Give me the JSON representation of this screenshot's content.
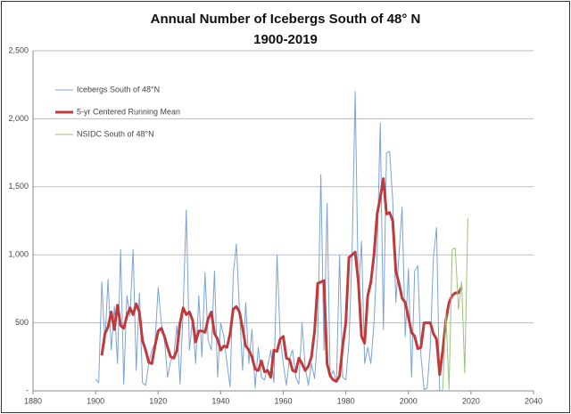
{
  "chart_data": {
    "type": "line",
    "title": "Annual Number of Icebergs South of 48° N",
    "subtitle": "1900-2019",
    "x": [
      1900,
      1901,
      1902,
      1903,
      1904,
      1905,
      1906,
      1907,
      1908,
      1909,
      1910,
      1911,
      1912,
      1913,
      1914,
      1915,
      1916,
      1917,
      1918,
      1919,
      1920,
      1921,
      1922,
      1923,
      1924,
      1925,
      1926,
      1927,
      1928,
      1929,
      1930,
      1931,
      1932,
      1933,
      1934,
      1935,
      1936,
      1937,
      1938,
      1939,
      1940,
      1941,
      1942,
      1943,
      1944,
      1945,
      1946,
      1947,
      1948,
      1949,
      1950,
      1951,
      1952,
      1953,
      1954,
      1955,
      1956,
      1957,
      1958,
      1959,
      1960,
      1961,
      1962,
      1963,
      1964,
      1965,
      1966,
      1967,
      1968,
      1969,
      1970,
      1971,
      1972,
      1973,
      1974,
      1975,
      1976,
      1977,
      1978,
      1979,
      1980,
      1981,
      1982,
      1983,
      1984,
      1985,
      1986,
      1987,
      1988,
      1989,
      1990,
      1991,
      1992,
      1993,
      1994,
      1995,
      1996,
      1997,
      1998,
      1999,
      2000,
      2001,
      2002,
      2003,
      2004,
      2005,
      2006,
      2007,
      2008,
      2009,
      2010,
      2011,
      2012,
      2013,
      2014,
      2015,
      2016,
      2017,
      2018,
      2019
    ],
    "series": [
      {
        "name": "Icebergs South of 48°N",
        "color": "#7ba3d6",
        "width": 1,
        "values": [
          85,
          60,
          800,
          350,
          820,
          300,
          620,
          200,
          1040,
          50,
          700,
          550,
          1040,
          150,
          720,
          60,
          40,
          200,
          300,
          350,
          760,
          500,
          380,
          100,
          220,
          260,
          480,
          50,
          600,
          1330,
          300,
          520,
          200,
          700,
          250,
          870,
          370,
          300,
          880,
          100,
          500,
          400,
          200,
          30,
          850,
          1080,
          600,
          150,
          650,
          200,
          450,
          20,
          320,
          100,
          80,
          180,
          300,
          60,
          1000,
          400,
          200,
          40,
          240,
          300,
          100,
          50,
          500,
          180,
          40,
          200,
          90,
          400,
          1590,
          300,
          1380,
          100,
          150,
          60,
          1000,
          100,
          80,
          350,
          1000,
          2200,
          700,
          1100,
          200,
          320,
          200,
          500,
          1000,
          1970,
          450,
          1750,
          1760,
          1400,
          650,
          1000,
          1350,
          400,
          900,
          100,
          880,
          920,
          260,
          10,
          20,
          330,
          980,
          1200,
          2,
          3,
          null,
          null,
          null,
          null,
          null,
          null,
          null,
          null
        ]
      },
      {
        "name": "5-yr Centered Running Mean",
        "color": "#c0393b",
        "width": 3,
        "values": [
          null,
          null,
          260,
          420,
          470,
          580,
          450,
          630,
          480,
          460,
          550,
          610,
          560,
          640,
          580,
          370,
          300,
          210,
          200,
          330,
          440,
          460,
          400,
          320,
          250,
          240,
          300,
          500,
          610,
          560,
          580,
          520,
          360,
          440,
          440,
          430,
          530,
          580,
          420,
          380,
          300,
          330,
          320,
          420,
          600,
          620,
          580,
          460,
          330,
          300,
          250,
          160,
          150,
          220,
          140,
          150,
          100,
          300,
          290,
          380,
          400,
          240,
          230,
          150,
          140,
          240,
          200,
          150,
          180,
          250,
          440,
          790,
          800,
          810,
          200,
          110,
          80,
          70,
          110,
          330,
          500,
          980,
          1000,
          1020,
          800,
          400,
          350,
          700,
          800,
          1000,
          1300,
          1420,
          1560,
          1300,
          1310,
          1250,
          880,
          790,
          680,
          650,
          540,
          430,
          400,
          310,
          320,
          500,
          500,
          500,
          420,
          380,
          120,
          300,
          520,
          650,
          700,
          720,
          720,
          760,
          null,
          null
        ]
      },
      {
        "name": "NSIDC South of 48°N",
        "color": "#9bc27a",
        "width": 1,
        "x": [
          2011,
          2012,
          2013,
          2014,
          2015,
          2016,
          2017,
          2018,
          2019
        ],
        "values": [
          10,
          570,
          10,
          1040,
          1050,
          600,
          800,
          130,
          1270
        ]
      }
    ],
    "xlim": [
      1880,
      2040
    ],
    "xticks": [
      1880,
      1900,
      1920,
      1940,
      1960,
      1980,
      2000,
      2020,
      2040
    ],
    "ylim": [
      0,
      2500
    ],
    "yticks": [
      {
        "value": 0,
        "label": "-"
      },
      500,
      {
        "value": 1000,
        "label": "1,000"
      },
      {
        "value": 1500,
        "label": "1,500"
      },
      {
        "value": 2000,
        "label": "2,000"
      },
      {
        "value": 2500,
        "label": "2,500"
      }
    ],
    "grid": true,
    "legend": "upper left"
  }
}
